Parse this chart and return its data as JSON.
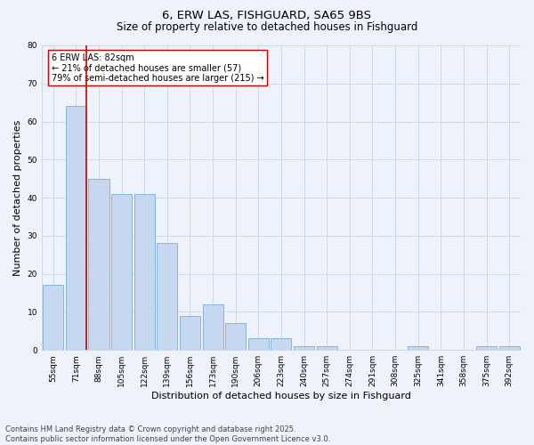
{
  "title": "6, ERW LAS, FISHGUARD, SA65 9BS",
  "subtitle": "Size of property relative to detached houses in Fishguard",
  "xlabel": "Distribution of detached houses by size in Fishguard",
  "ylabel": "Number of detached properties",
  "bar_color": "#c5d8f0",
  "bar_edge_color": "#7aaed6",
  "background_color": "#eef2fb",
  "grid_color": "#c8d4e8",
  "vline_color": "#cc0000",
  "vline_x_index": 1,
  "annotation_text": "6 ERW LAS: 82sqm\n← 21% of detached houses are smaller (57)\n79% of semi-detached houses are larger (215) →",
  "annotation_box_color": "#ffffff",
  "annotation_box_edge": "#cc0000",
  "categories": [
    "55sqm",
    "71sqm",
    "88sqm",
    "105sqm",
    "122sqm",
    "139sqm",
    "156sqm",
    "173sqm",
    "190sqm",
    "206sqm",
    "223sqm",
    "240sqm",
    "257sqm",
    "274sqm",
    "291sqm",
    "308sqm",
    "325sqm",
    "341sqm",
    "358sqm",
    "375sqm",
    "392sqm"
  ],
  "values": [
    17,
    64,
    45,
    41,
    41,
    28,
    9,
    12,
    7,
    3,
    3,
    1,
    1,
    0,
    0,
    0,
    1,
    0,
    0,
    1,
    1
  ],
  "ylim": [
    0,
    80
  ],
  "yticks": [
    0,
    10,
    20,
    30,
    40,
    50,
    60,
    70,
    80
  ],
  "footer_text": "Contains HM Land Registry data © Crown copyright and database right 2025.\nContains public sector information licensed under the Open Government Licence v3.0.",
  "footer_fontsize": 6.0,
  "title_fontsize": 9.5,
  "subtitle_fontsize": 8.5,
  "tick_fontsize": 6.5,
  "ylabel_fontsize": 8,
  "xlabel_fontsize": 8,
  "annotation_fontsize": 7.0
}
